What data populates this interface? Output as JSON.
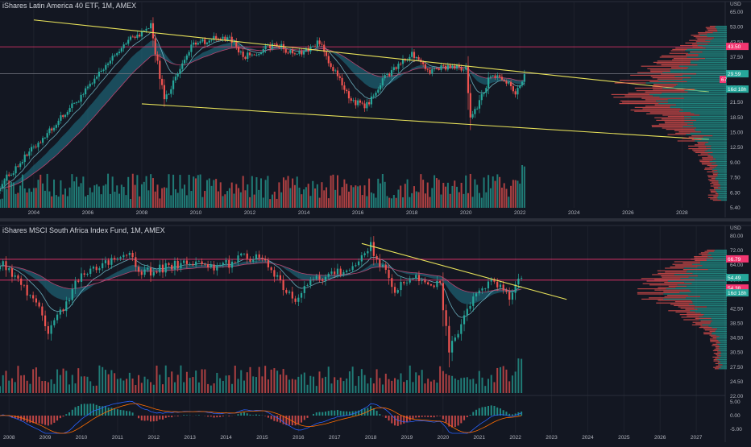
{
  "chart_data": [
    {
      "type": "candlestick",
      "title": "iShares Latin America 40 ETF, 1M, AMEX",
      "currency": "USD",
      "scale": "log",
      "x_tick_labels": [
        "2004",
        "2006",
        "2008",
        "2010",
        "2012",
        "2014",
        "2016",
        "2018",
        "2020",
        "2022",
        "2024",
        "2026",
        "2028"
      ],
      "y_tick_labels": [
        "65.00",
        "53.00",
        "43.50",
        "37.50",
        "31.00",
        "25.50",
        "21.50",
        "18.50",
        "15.00",
        "12.50",
        "9.00",
        "7.50",
        "6.30",
        "5.40"
      ],
      "price_labels": [
        "43.50",
        "29.59",
        "67",
        "16d 18h"
      ],
      "key_points": [
        {
          "date": "2002-10",
          "price": 7.0
        },
        {
          "date": "2004-01",
          "price": 11.5
        },
        {
          "date": "2006-01",
          "price": 25.0
        },
        {
          "date": "2007-05",
          "price": 45.0
        },
        {
          "date": "2008-05",
          "price": 57.0
        },
        {
          "date": "2008-11",
          "price": 21.5
        },
        {
          "date": "2009-12",
          "price": 46.0
        },
        {
          "date": "2011-04",
          "price": 50.0
        },
        {
          "date": "2011-10",
          "price": 38.0
        },
        {
          "date": "2013-01",
          "price": 45.0
        },
        {
          "date": "2013-09",
          "price": 39.0
        },
        {
          "date": "2014-08",
          "price": 46.0
        },
        {
          "date": "2015-09",
          "price": 22.0
        },
        {
          "date": "2016-04",
          "price": 19.5
        },
        {
          "date": "2017-01",
          "price": 29.0
        },
        {
          "date": "2018-01",
          "price": 40.0
        },
        {
          "date": "2018-09",
          "price": 31.0
        },
        {
          "date": "2019-06",
          "price": 34.0
        },
        {
          "date": "2020-01",
          "price": 33.0
        },
        {
          "date": "2020-03",
          "price": 16.5
        },
        {
          "date": "2020-12",
          "price": 30.0
        },
        {
          "date": "2021-06",
          "price": 28.0
        },
        {
          "date": "2021-11",
          "price": 24.0
        },
        {
          "date": "2022-03",
          "price": 29.6
        }
      ],
      "trendlines": [
        {
          "from": {
            "date": "2004-01",
            "price": 62.0
          },
          "to": {
            "date": "2029-01",
            "price": 24.0
          },
          "color": "#e8e25a"
        },
        {
          "from": {
            "date": "2008-01",
            "price": 20.5
          },
          "to": {
            "date": "2029-01",
            "price": 12.8
          },
          "color": "#e8e25a"
        }
      ],
      "hlines": [
        {
          "price": 43.5,
          "color": "#f23670"
        },
        {
          "price": 30.5,
          "color": "#787b86"
        }
      ],
      "volume_profile": true
    },
    {
      "type": "candlestick",
      "title": "iShares MSCI South Africa Index Fund, 1M, AMEX",
      "currency": "USD",
      "scale": "log",
      "x_tick_labels": [
        "2008",
        "2009",
        "2010",
        "2011",
        "2012",
        "2013",
        "2014",
        "2015",
        "2016",
        "2017",
        "2018",
        "2019",
        "2020",
        "2021",
        "2022",
        "2023",
        "2024",
        "2025",
        "2026",
        "2027"
      ],
      "y_tick_labels": [
        "80.00",
        "72.00",
        "64.00",
        "56.00",
        "48.50",
        "42.50",
        "38.50",
        "34.50",
        "30.50",
        "27.50",
        "24.50",
        "22.00"
      ],
      "price_labels": [
        "66.79",
        "54.49",
        "54.38",
        "16d 18h"
      ],
      "key_points": [
        {
          "date": "2007-10",
          "price": 65.0
        },
        {
          "date": "2008-10",
          "price": 44.0
        },
        {
          "date": "2009-02",
          "price": 32.0
        },
        {
          "date": "2010-01",
          "price": 58.0
        },
        {
          "date": "2011-04",
          "price": 72.0
        },
        {
          "date": "2011-09",
          "price": 58.0
        },
        {
          "date": "2013-01",
          "price": 66.0
        },
        {
          "date": "2013-09",
          "price": 60.0
        },
        {
          "date": "2014-06",
          "price": 68.0
        },
        {
          "date": "2015-01",
          "price": 67.0
        },
        {
          "date": "2015-12",
          "price": 44.0
        },
        {
          "date": "2016-06",
          "price": 55.0
        },
        {
          "date": "2017-06",
          "price": 60.0
        },
        {
          "date": "2018-01",
          "price": 76.0
        },
        {
          "date": "2018-09",
          "price": 50.0
        },
        {
          "date": "2019-04",
          "price": 57.0
        },
        {
          "date": "2019-12",
          "price": 51.0
        },
        {
          "date": "2020-03",
          "price": 27.5
        },
        {
          "date": "2020-12",
          "price": 48.0
        },
        {
          "date": "2021-05",
          "price": 54.0
        },
        {
          "date": "2021-11",
          "price": 47.0
        },
        {
          "date": "2022-03",
          "price": 56.0
        }
      ],
      "trendlines": [
        {
          "from": {
            "date": "2017-10",
            "price": 78.0
          },
          "to": {
            "date": "2023-06",
            "price": 45.0
          },
          "color": "#e8e25a"
        }
      ],
      "hlines": [
        {
          "price": 66.79,
          "color": "#f23670"
        },
        {
          "price": 54.4,
          "color": "#f23670"
        }
      ],
      "volume_profile": true,
      "indicator": {
        "type": "macd",
        "y_tick_labels": [
          "5.00",
          "0.00",
          "-5.00"
        ]
      }
    }
  ]
}
